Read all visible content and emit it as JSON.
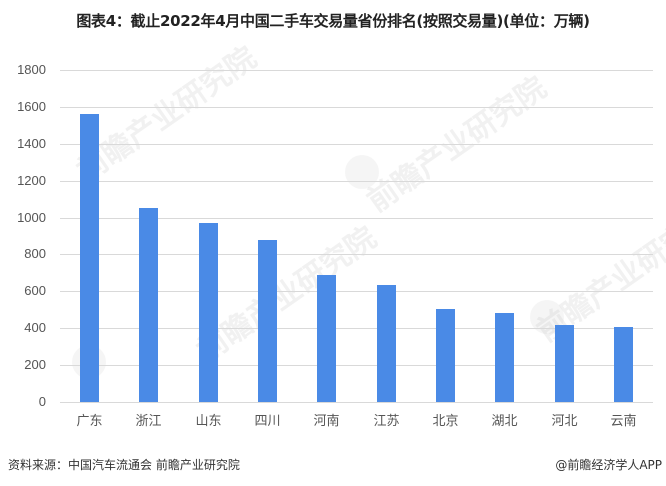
{
  "title": "图表4：截止2022年4月中国二手车交易量省份排名(按照交易量)(单位：万辆)",
  "source": "资料来源：中国汽车流通会 前瞻产业研究院",
  "credit": "@前瞻经济学人APP",
  "watermark": "前瞻产业研究院",
  "colors": {
    "bar": "#4a8ae6",
    "grid": "#d9d9d9",
    "text": "#555555"
  },
  "y_ticks": [
    "0",
    "200",
    "400",
    "600",
    "800",
    "1000",
    "1200",
    "1400",
    "1600",
    "1800"
  ],
  "chart_data": {
    "type": "bar",
    "title": "图表4：截止2022年4月中国二手车交易量省份排名(按照交易量)(单位：万辆)",
    "xlabel": "",
    "ylabel": "",
    "ylim": [
      0,
      1800
    ],
    "yticks": [
      0,
      200,
      400,
      600,
      800,
      1000,
      1200,
      1400,
      1600,
      1800
    ],
    "grid": true,
    "legend": "none",
    "categories": [
      "广东",
      "浙江",
      "山东",
      "四川",
      "河南",
      "江苏",
      "北京",
      "湖北",
      "河北",
      "云南"
    ],
    "values": [
      1562,
      1054,
      968,
      881,
      686,
      632,
      503,
      481,
      416,
      405
    ],
    "unit": "万辆"
  }
}
